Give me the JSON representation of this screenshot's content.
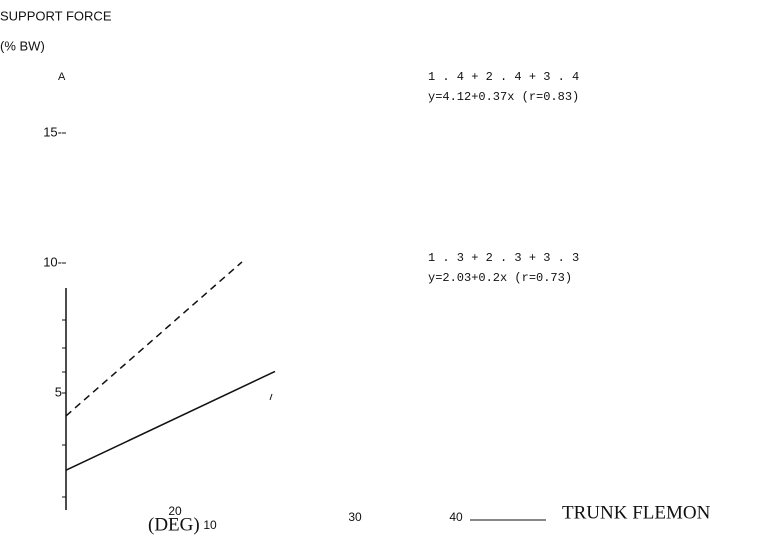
{
  "chart_data": {
    "type": "line",
    "y_label_lines": [
      "SUPPORT FORCE",
      "(% BW)"
    ],
    "panel_label": "A",
    "x_label": "TRUNK FLEMON",
    "x_unit": "(DEG)",
    "x_tick_texts": [
      "10",
      "20",
      "30",
      "40"
    ],
    "ylim": [
      0.5,
      15
    ],
    "yticks": [
      {
        "value": 5,
        "label": "5"
      },
      {
        "value": 10,
        "label": "10-"
      },
      {
        "value": 15,
        "label": "15-"
      }
    ],
    "xlim": [
      0,
      30
    ],
    "series": [
      {
        "name": "1 . 4 + 2 . 4 + 3 . 4",
        "equation": "y=4.12+0.37x (r=0.83)",
        "color": "#111111",
        "dashed": true,
        "x": [
          0,
          16
        ],
        "values": [
          4.12,
          10.04
        ]
      },
      {
        "name": "1 . 3 + 2 . 3 + 3 . 3",
        "equation": "y=2.03+0.2x (r=0.73)",
        "color": "#111111",
        "dashed": false,
        "x": [
          0,
          19
        ],
        "values": [
          2.03,
          5.83
        ]
      }
    ]
  }
}
